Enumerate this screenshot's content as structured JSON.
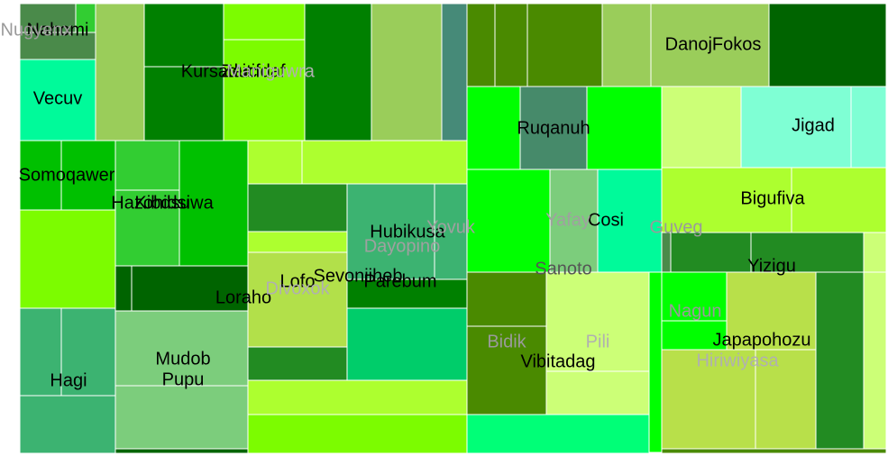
{
  "chart_data": {
    "type": "treemap",
    "title": "",
    "tiles": [
      {
        "label": "Nahomi",
        "color": "#4a8a4a",
        "text_color": "#000000"
      },
      {
        "label": "Nugyenx",
        "color": "#4a8a4a",
        "text_color": "#9a9a9a"
      },
      {
        "label": "Vecuv",
        "color": "#00fa9a",
        "text_color": "#000000"
      },
      {
        "label": "Kursaduc",
        "color": "#008000",
        "text_color": "#000000"
      },
      {
        "label": "Zeitifdaf",
        "color": "#7cfc00",
        "text_color": "#000000"
      },
      {
        "label": "Maniguwra",
        "color": "#9acd32",
        "text_color": "#b0b0b0"
      },
      {
        "label": "Somoqawer",
        "color": "#00c000",
        "text_color": "#000000"
      },
      {
        "label": "Hazohidsiwa",
        "color": "#32cd32",
        "text_color": "#000000"
      },
      {
        "label": "Kibdsu",
        "color": "#32cd32",
        "text_color": "#000000"
      },
      {
        "label": "Loraho",
        "color": "#006400",
        "text_color": "#000000"
      },
      {
        "label": "Hagi",
        "color": "#3cb371",
        "text_color": "#000000"
      },
      {
        "label": "Mudob",
        "color": "#7ccd7c",
        "text_color": "#000000"
      },
      {
        "label": "Pupu",
        "color": "#7ccd7c",
        "text_color": "#000000"
      },
      {
        "label": "Hubikusa",
        "color": "#3cb371",
        "text_color": "#000000"
      },
      {
        "label": "Yovuk",
        "color": "#3cb371",
        "text_color": "#a0a0a0"
      },
      {
        "label": "Dayopino",
        "color": "#3cb371",
        "text_color": "#a0a0a0"
      },
      {
        "label": "Lofo",
        "color": "#9acd32",
        "text_color": "#000000"
      },
      {
        "label": "Sevoniiheb",
        "color": "#9acd32",
        "text_color": "#000000"
      },
      {
        "label": "Divoxok",
        "color": "#9acd32",
        "text_color": "#b0b0b0"
      },
      {
        "label": "Parebum",
        "color": "#008000",
        "text_color": "#000000"
      },
      {
        "label": "Ruqanuh",
        "color": "#4a8a6a",
        "text_color": "#000000"
      },
      {
        "label": "DanojFokos",
        "color": "#9acd6a",
        "text_color": "#000000"
      },
      {
        "label": "Jigad",
        "color": "#7fffd4",
        "text_color": "#000000"
      },
      {
        "label": "Bigufiva",
        "color": "#adff2f",
        "text_color": "#000000"
      },
      {
        "label": "Cosi",
        "color": "#00fa9a",
        "text_color": "#000000"
      },
      {
        "label": "Yafay",
        "color": "#7ccd7c",
        "text_color": "#a0a0a0"
      },
      {
        "label": "Guveg",
        "color": "#228b22",
        "text_color": "#9a9a9a"
      },
      {
        "label": "Sanoto",
        "color": "#ccff77",
        "text_color": "#555555"
      },
      {
        "label": "Yizigu",
        "color": "#228b22",
        "text_color": "#000000"
      },
      {
        "label": "Nagun",
        "color": "#00ff00",
        "text_color": "#9a9a9a"
      },
      {
        "label": "Bidik",
        "color": "#4a8a00",
        "text_color": "#9a9a9a"
      },
      {
        "label": "Pili",
        "color": "#ccff77",
        "text_color": "#b0b0b0"
      },
      {
        "label": "Vibitadag",
        "color": "#4a8a00",
        "text_color": "#000000"
      },
      {
        "label": "Japapohozu",
        "color": "#adff2f",
        "text_color": "#000000"
      },
      {
        "label": "Hiriwiyasa",
        "color": "#b8e04a",
        "text_color": "#b0b0b0"
      }
    ]
  }
}
